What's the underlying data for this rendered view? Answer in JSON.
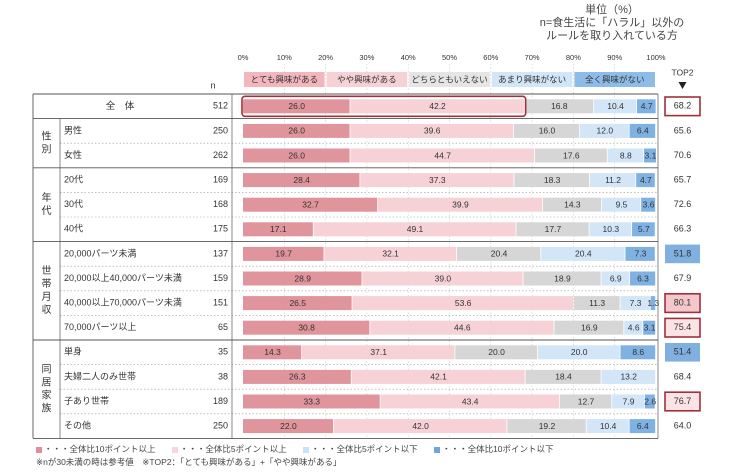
{
  "unit_block": {
    "line1": "単位（%）",
    "line2": "n=食生活に「ハラル」以外の",
    "line3": "ルールを取り入れている方"
  },
  "legend_notes": [
    {
      "label": "・・・全体比10ポイント以上",
      "color": "#e08f98"
    },
    {
      "label": "・・・全体比5ポイント以上",
      "color": "#f7d6da"
    },
    {
      "label": "・・・全体比5ポイント以下",
      "color": "#c9e2f7"
    },
    {
      "label": "・・・全体比10ポイント以下",
      "color": "#6fa6dd"
    }
  ],
  "footnote": "※nが30未満の時は参考値　※TOP2：「とても興味がある」+「やや興味がある」",
  "chart_data": {
    "type": "bar",
    "stacked": true,
    "orientation": "horizontal",
    "x_ticks": [
      "0%",
      "10%",
      "20%",
      "30%",
      "40%",
      "50%",
      "60%",
      "70%",
      "80%",
      "90%",
      "100%"
    ],
    "n_header": "n",
    "top2_header": "TOP2",
    "series": [
      {
        "name": "とても興味がある",
        "color": "#e0949b",
        "header_color": "#f3b6bd"
      },
      {
        "name": "やや興味がある",
        "color": "#f6d2d6",
        "header_color": "#f6d2d6"
      },
      {
        "name": "どちらともいえない",
        "color": "#d6d6d6",
        "header_color": "#e5e5e5"
      },
      {
        "name": "あまり興味がない",
        "color": "#d2e6f8",
        "header_color": "#d2e6f8"
      },
      {
        "name": "全く興味がない",
        "color": "#7fb2e3",
        "header_color": "#8dbce8"
      }
    ],
    "groups": [
      {
        "label": "",
        "rows": [
          {
            "label": "全　体",
            "n": "512",
            "values": [
              26.0,
              42.2,
              16.8,
              10.4,
              4.7
            ],
            "top2": "68.2",
            "top2_bg": "#ffffff",
            "top2_border": "#a0303a",
            "highlight_box": true
          }
        ]
      },
      {
        "label": "性別",
        "rows": [
          {
            "label": "男性",
            "n": "250",
            "values": [
              26.0,
              39.6,
              16.0,
              12.0,
              6.4
            ],
            "top2": "65.6",
            "top2_bg": "#ffffff",
            "top2_border": ""
          },
          {
            "label": "女性",
            "n": "262",
            "values": [
              26.0,
              44.7,
              17.6,
              8.8,
              3.1
            ],
            "top2": "70.6",
            "top2_bg": "#ffffff",
            "top2_border": ""
          }
        ]
      },
      {
        "label": "年代",
        "rows": [
          {
            "label": "20代",
            "n": "169",
            "values": [
              28.4,
              37.3,
              18.3,
              11.2,
              4.7
            ],
            "top2": "65.7",
            "top2_bg": "#ffffff",
            "top2_border": ""
          },
          {
            "label": "30代",
            "n": "168",
            "values": [
              32.7,
              39.9,
              14.3,
              9.5,
              3.6
            ],
            "top2": "72.6",
            "top2_bg": "#ffffff",
            "top2_border": ""
          },
          {
            "label": "40代",
            "n": "175",
            "values": [
              17.1,
              49.1,
              17.7,
              10.3,
              5.7
            ],
            "top2": "66.3",
            "top2_bg": "#ffffff",
            "top2_border": ""
          }
        ]
      },
      {
        "label": "世帯月収",
        "rows": [
          {
            "label": "20,000パーツ未満",
            "n": "137",
            "values": [
              19.7,
              32.1,
              20.4,
              20.4,
              7.3
            ],
            "top2": "51.8",
            "top2_bg": "#7fb0e0",
            "top2_border": ""
          },
          {
            "label": "20,000以上40,000パーツ未満",
            "n": "159",
            "values": [
              28.9,
              39.0,
              18.9,
              6.9,
              6.3
            ],
            "top2": "67.9",
            "top2_bg": "#ffffff",
            "top2_border": ""
          },
          {
            "label": "40,000以上70,000パーツ未満",
            "n": "151",
            "values": [
              26.5,
              53.6,
              11.3,
              7.3,
              1.3
            ],
            "top2": "80.1",
            "top2_bg": "#f4c7cc",
            "top2_border": "#a0303a"
          },
          {
            "label": "70,000パーツ以上",
            "n": "65",
            "values": [
              30.8,
              44.6,
              16.9,
              4.6,
              3.1
            ],
            "top2": "75.4",
            "top2_bg": "#fbe3e6",
            "top2_border": "#a0303a"
          }
        ]
      },
      {
        "label": "同居家族",
        "rows": [
          {
            "label": "単身",
            "n": "35",
            "values": [
              14.3,
              37.1,
              20.0,
              20.0,
              8.6
            ],
            "top2": "51.4",
            "top2_bg": "#7fb0e0",
            "top2_border": ""
          },
          {
            "label": "夫婦二人のみ世帯",
            "n": "38",
            "values": [
              26.3,
              42.1,
              18.4,
              13.2,
              0
            ],
            "top2": "68.4",
            "top2_bg": "#ffffff",
            "top2_border": ""
          },
          {
            "label": "子あり世帯",
            "n": "189",
            "values": [
              33.3,
              43.4,
              12.7,
              7.9,
              2.6
            ],
            "top2": "76.7",
            "top2_bg": "#fbe3e6",
            "top2_border": "#a0303a"
          },
          {
            "label": "その他",
            "n": "250",
            "values": [
              22.0,
              42.0,
              19.2,
              10.4,
              6.4
            ],
            "top2": "64.0",
            "top2_bg": "#ffffff",
            "top2_border": ""
          }
        ]
      }
    ]
  }
}
